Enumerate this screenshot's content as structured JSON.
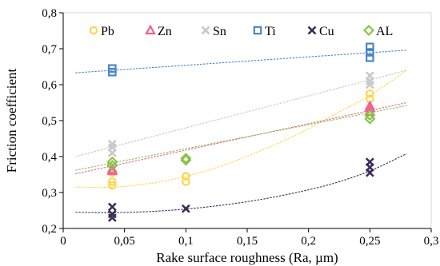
{
  "chart_data": {
    "type": "scatter",
    "title": "",
    "xlabel": "Rake surface roughness (Ra, µm)",
    "ylabel": "Friction coefficient",
    "xlim": [
      0,
      0.3
    ],
    "ylim": [
      0.2,
      0.8
    ],
    "x_ticks": [
      0,
      0.05,
      0.1,
      0.15,
      0.2,
      0.25,
      0.3
    ],
    "x_tick_labels": [
      "0",
      "0,05",
      "0,1",
      "0,15",
      "0,2",
      "0,25",
      "0,3"
    ],
    "y_ticks": [
      0.2,
      0.3,
      0.4,
      0.5,
      0.6,
      0.7,
      0.8
    ],
    "y_tick_labels": [
      "0,2",
      "0,3",
      "0,4",
      "0,5",
      "0,6",
      "0,7",
      "0,8"
    ],
    "grid": false,
    "legend_position": "top",
    "series": [
      {
        "name": "Pb",
        "marker": "circle",
        "color": "#FFD54F",
        "trend_color": "#FFD54F",
        "trend": "polynomial",
        "points": [
          [
            0.04,
            0.32
          ],
          [
            0.04,
            0.33
          ],
          [
            0.04,
            0.355
          ],
          [
            0.1,
            0.33
          ],
          [
            0.1,
            0.345
          ],
          [
            0.25,
            0.56
          ],
          [
            0.25,
            0.575
          ]
        ],
        "trend_x": [
          0.01,
          0.04,
          0.07,
          0.1,
          0.13,
          0.16,
          0.19,
          0.22,
          0.25,
          0.28
        ],
        "trend_y": [
          0.315,
          0.315,
          0.325,
          0.345,
          0.375,
          0.415,
          0.46,
          0.515,
          0.57,
          0.64
        ]
      },
      {
        "name": "Zn",
        "marker": "triangle",
        "color": "#F06292",
        "trend_color": "#F06292",
        "trend": "linear",
        "points": [
          [
            0.04,
            0.36
          ],
          [
            0.04,
            0.365
          ],
          [
            0.25,
            0.525
          ],
          [
            0.25,
            0.535
          ],
          [
            0.25,
            0.54
          ]
        ],
        "trend_x": [
          0.01,
          0.28
        ],
        "trend_y": [
          0.352,
          0.55
        ]
      },
      {
        "name": "Sn",
        "marker": "x",
        "color": "#C8C8C8",
        "trend_color": "#C8C8C8",
        "trend": "linear",
        "points": [
          [
            0.04,
            0.41
          ],
          [
            0.04,
            0.425
          ],
          [
            0.04,
            0.435
          ],
          [
            0.25,
            0.6
          ],
          [
            0.25,
            0.61
          ],
          [
            0.25,
            0.625
          ]
        ],
        "trend_x": [
          0.01,
          0.28
        ],
        "trend_y": [
          0.4,
          0.64
        ]
      },
      {
        "name": "Ti",
        "marker": "square",
        "color": "#4A86C8",
        "trend_color": "#4A86C8",
        "trend": "linear",
        "points": [
          [
            0.04,
            0.635
          ],
          [
            0.04,
            0.645
          ],
          [
            0.25,
            0.675
          ],
          [
            0.25,
            0.69
          ],
          [
            0.25,
            0.705
          ]
        ],
        "trend_x": [
          0.01,
          0.28
        ],
        "trend_y": [
          0.633,
          0.696
        ]
      },
      {
        "name": "Cu",
        "marker": "x",
        "color": "#3B2A5A",
        "trend_color": "#3B2A5A",
        "trend": "polynomial",
        "points": [
          [
            0.04,
            0.23
          ],
          [
            0.04,
            0.24
          ],
          [
            0.04,
            0.26
          ],
          [
            0.1,
            0.255
          ],
          [
            0.25,
            0.355
          ],
          [
            0.25,
            0.37
          ],
          [
            0.25,
            0.385
          ]
        ],
        "trend_x": [
          0.01,
          0.04,
          0.07,
          0.1,
          0.13,
          0.16,
          0.19,
          0.22,
          0.25,
          0.28
        ],
        "trend_y": [
          0.245,
          0.244,
          0.247,
          0.254,
          0.265,
          0.28,
          0.3,
          0.325,
          0.36,
          0.408
        ]
      },
      {
        "name": "AL",
        "marker": "diamond",
        "color": "#8BC34A",
        "trend_color": "#8BC34A",
        "trend": "linear",
        "points": [
          [
            0.04,
            0.375
          ],
          [
            0.04,
            0.385
          ],
          [
            0.1,
            0.39
          ],
          [
            0.1,
            0.395
          ],
          [
            0.25,
            0.505
          ],
          [
            0.25,
            0.515
          ]
        ],
        "trend_x": [
          0.01,
          0.28
        ],
        "trend_y": [
          0.362,
          0.542
        ]
      }
    ]
  }
}
